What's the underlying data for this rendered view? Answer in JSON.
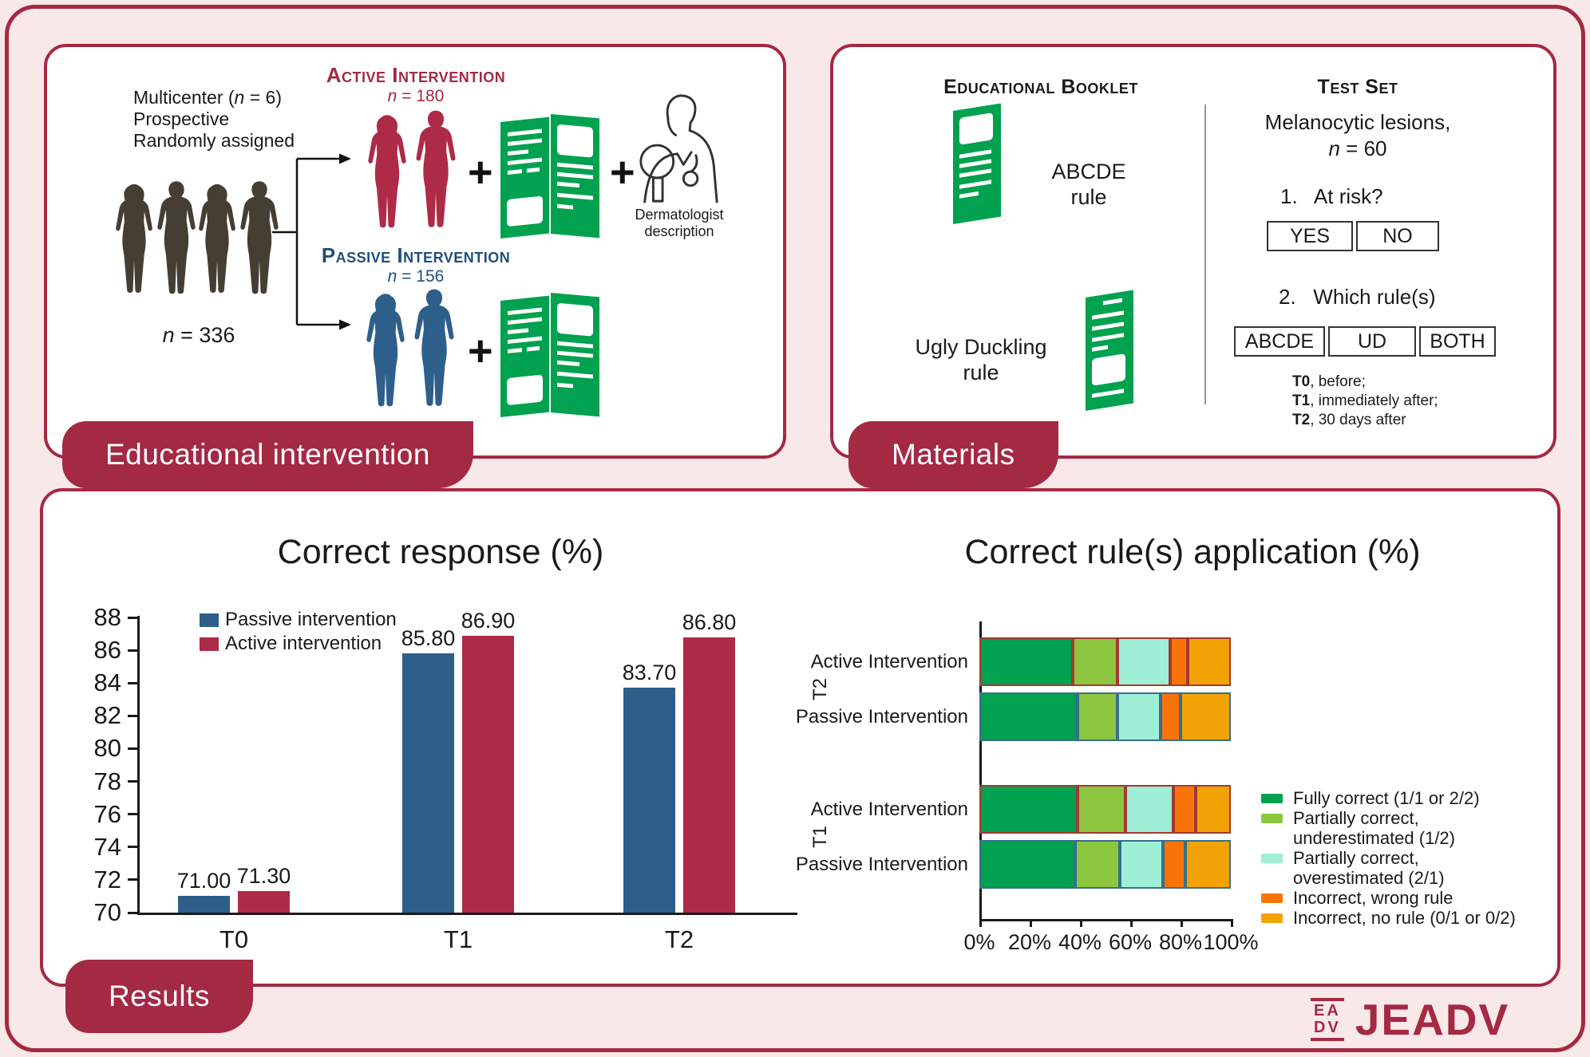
{
  "colors": {
    "background": "#F8E8E8",
    "maroon": "#A42943",
    "crimson": "#AE2B47",
    "steel_blue": "#2D5F8A",
    "navy": "#1F4E7C",
    "green": "#00A14F",
    "light_green": "#8DC63F",
    "pale_cyan": "#9FEFD6",
    "dark_orange": "#F87408",
    "amber": "#F3A206",
    "silhouette": "#453F33"
  },
  "panels": {
    "educational": {
      "badge": "Educational intervention",
      "study_lines": [
        "Multicenter (n = 6)",
        "Prospective",
        "Randomly assigned"
      ],
      "cohort_n": "n = 336",
      "active": {
        "title": "Active Intervention",
        "n": "n = 180"
      },
      "passive": {
        "title": "Passive Intervention",
        "n": "n = 156"
      },
      "plus": "+",
      "dermatologist": {
        "line1": "Dermatologist",
        "line2": "description"
      }
    },
    "materials": {
      "badge": "Materials",
      "headings": {
        "booklet": "Educational Booklet",
        "testset": "Test Set"
      },
      "abcde": {
        "line1": "ABCDE",
        "line2": "rule"
      },
      "ugly": {
        "line1": "Ugly Duckling",
        "line2": "rule"
      },
      "lesions": {
        "line1": "Melanocytic lesions,",
        "line2": "n = 60"
      },
      "q1": "1.   At risk?",
      "q1_options": [
        "YES",
        "NO"
      ],
      "q2": "2.   Which rule(s)",
      "q2_options": [
        "ABCDE",
        "UD",
        "BOTH"
      ],
      "timing": [
        {
          "t": "T0",
          "rest": ", before;"
        },
        {
          "t": "T1",
          "rest": ", immediately after;"
        },
        {
          "t": "T2",
          "rest": ", 30 days after"
        }
      ]
    },
    "results": {
      "badge": "Results"
    }
  },
  "logo": {
    "emblem_line1": "EA",
    "emblem_line2": "DV",
    "wordmark": "JEADV"
  },
  "chart_data": [
    {
      "type": "bar",
      "title": "Correct response (%)",
      "categories": [
        "T0",
        "T1",
        "T2"
      ],
      "series": [
        {
          "name": "Passive intervention",
          "color": "#2D5F8A",
          "values": [
            71.0,
            85.8,
            83.7
          ]
        },
        {
          "name": "Active intervention",
          "color": "#AE2B47",
          "values": [
            71.3,
            86.9,
            86.8
          ]
        }
      ],
      "value_labels": [
        [
          "71.00",
          "71.30"
        ],
        [
          "85.80",
          "86.90"
        ],
        [
          "83.70",
          "86.80"
        ]
      ],
      "ylim": [
        70,
        88
      ],
      "ytick_step": 2,
      "xlabel": "",
      "ylabel": "",
      "legend_position": "top-left",
      "grid": false
    },
    {
      "type": "stacked-bar-horizontal",
      "title": "Correct rule(s) application (%)",
      "xlim": [
        0,
        100
      ],
      "xticks": [
        "0%",
        "20%",
        "40%",
        "60%",
        "80%",
        "100%"
      ],
      "segments": [
        {
          "name": "Fully correct (1/1 or 2/2)",
          "color": "#00A14F"
        },
        {
          "name": "Partially correct,\nunderestimated (1/2)",
          "color": "#8DC63F"
        },
        {
          "name": "Partially correct,\noverestimated (2/1)",
          "color": "#9FEFD6"
        },
        {
          "name": "Incorrect, wrong rule",
          "color": "#F87408"
        },
        {
          "name": "Incorrect, no rule (0/1 or 0/2)",
          "color": "#F3A206"
        }
      ],
      "groups": [
        {
          "label": "T2",
          "rows": [
            {
              "label": "Active Intervention",
              "border": "#A13A32",
              "values": [
                37,
                18,
                21,
                7,
                17
              ]
            },
            {
              "label": "Passive Intervention",
              "border": "#35708C",
              "values": [
                39,
                16,
                17,
                8,
                20
              ]
            }
          ]
        },
        {
          "label": "T1",
          "rows": [
            {
              "label": "Active Intervention",
              "border": "#A13A32",
              "values": [
                39,
                19,
                19,
                9,
                14
              ]
            },
            {
              "label": "Passive Intervention",
              "border": "#35708C",
              "values": [
                38,
                18,
                17,
                9,
                18
              ]
            }
          ]
        }
      ],
      "legend_position": "right"
    }
  ]
}
